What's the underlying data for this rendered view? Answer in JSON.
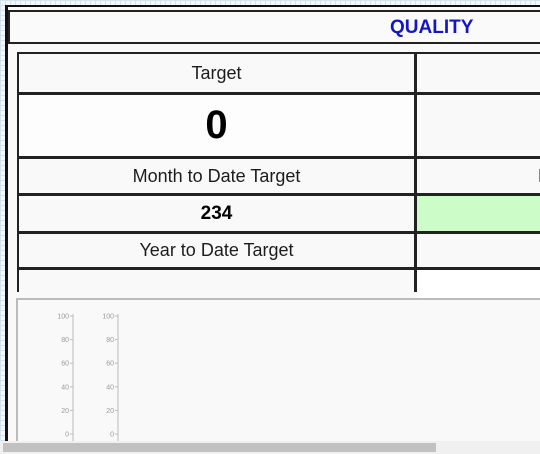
{
  "header": {
    "title": "QUALITY"
  },
  "kpi": {
    "target_label": "Target",
    "target_value": "0",
    "mtd_target_label": "Month to Date Target",
    "mtd_target_value": "234",
    "ytd_target_label": "Year to Date Target",
    "ytd_target_value": "",
    "right_mtd_label_partial": "M"
  },
  "charts": {
    "axis_ticks": [
      "100",
      "80",
      "60",
      "40",
      "20",
      "0"
    ]
  },
  "colors": {
    "title": "#1515c8",
    "highlight_green": "#ccfcc8",
    "border": "#222222"
  }
}
